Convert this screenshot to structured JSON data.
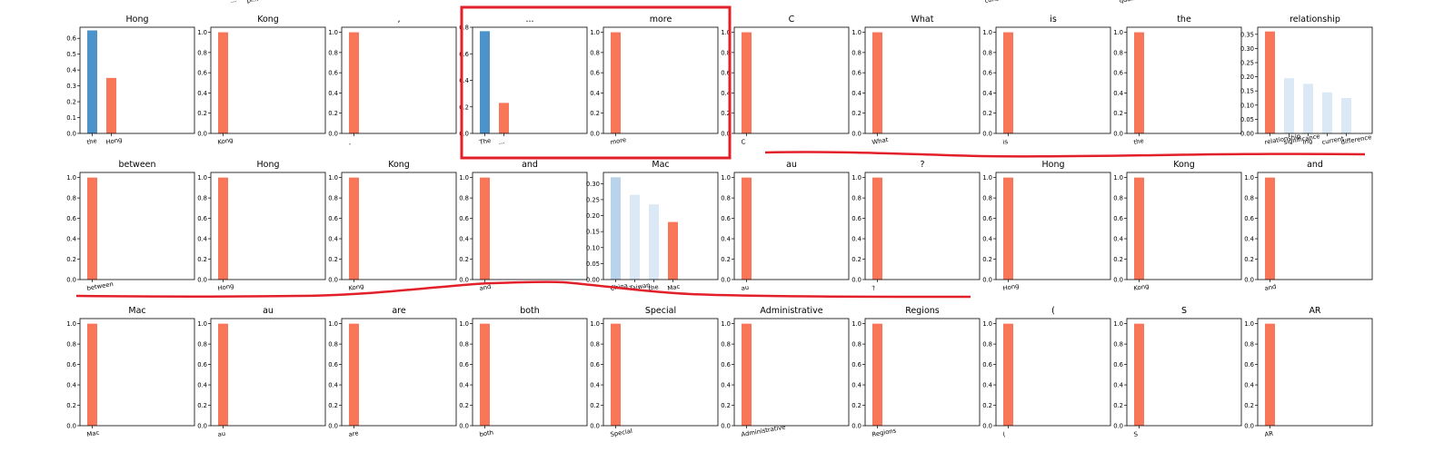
{
  "figure": {
    "colors": {
      "orange": "#fa7658",
      "blue_strong": "#4b93c9",
      "blue_mid": "#b9d3ea",
      "blue_light": "#dbe8f5",
      "annotation_red": "#e3202a"
    },
    "top_strip_texts": [
      "...",
      "pi...",
      "consid...",
      "qua..."
    ]
  },
  "chart_data": [
    {
      "type": "bar",
      "title": "Hong",
      "categories": [
        "the",
        "Hong"
      ],
      "values": [
        0.65,
        0.35
      ],
      "yticks": [
        "0.0",
        "0.1",
        "0.2",
        "0.3",
        "0.4",
        "0.5",
        "0.6"
      ],
      "ylim": [
        0,
        0.67
      ],
      "colors": [
        "blue_strong",
        "orange"
      ]
    },
    {
      "type": "bar",
      "title": "Kong",
      "categories": [
        "Kong"
      ],
      "values": [
        1.0
      ],
      "yticks": [
        "0.0",
        "0.2",
        "0.4",
        "0.6",
        "0.8",
        "1.0"
      ],
      "ylim": [
        0,
        1.05
      ],
      "colors": [
        "orange"
      ]
    },
    {
      "type": "bar",
      "title": ",",
      "categories": [
        ","
      ],
      "values": [
        1.0
      ],
      "yticks": [
        "0.0",
        "0.2",
        "0.4",
        "0.6",
        "0.8",
        "1.0"
      ],
      "ylim": [
        0,
        1.05
      ],
      "colors": [
        "orange"
      ]
    },
    {
      "type": "bar",
      "title": "...",
      "categories": [
        "The",
        "..."
      ],
      "values": [
        0.77,
        0.23
      ],
      "yticks": [
        "0.0",
        "0.2",
        "0.4",
        "0.6",
        "0.8"
      ],
      "ylim": [
        0,
        0.8
      ],
      "colors": [
        "blue_strong",
        "orange"
      ]
    },
    {
      "type": "bar",
      "title": "more",
      "categories": [
        "more"
      ],
      "values": [
        1.0
      ],
      "yticks": [
        "0.0",
        "0.2",
        "0.4",
        "0.6",
        "0.8",
        "1.0"
      ],
      "ylim": [
        0,
        1.05
      ],
      "colors": [
        "orange"
      ]
    },
    {
      "type": "bar",
      "title": "C",
      "categories": [
        "C"
      ],
      "values": [
        1.0
      ],
      "yticks": [
        "0.0",
        "0.2",
        "0.4",
        "0.6",
        "0.8",
        "1.0"
      ],
      "ylim": [
        0,
        1.05
      ],
      "colors": [
        "orange"
      ]
    },
    {
      "type": "bar",
      "title": "What",
      "categories": [
        "What"
      ],
      "values": [
        1.0
      ],
      "yticks": [
        "0.0",
        "0.2",
        "0.4",
        "0.6",
        "0.8",
        "1.0"
      ],
      "ylim": [
        0,
        1.05
      ],
      "colors": [
        "orange"
      ]
    },
    {
      "type": "bar",
      "title": "is",
      "categories": [
        "is"
      ],
      "values": [
        1.0
      ],
      "yticks": [
        "0.0",
        "0.2",
        "0.4",
        "0.6",
        "0.8",
        "1.0"
      ],
      "ylim": [
        0,
        1.05
      ],
      "colors": [
        "orange"
      ]
    },
    {
      "type": "bar",
      "title": "the",
      "categories": [
        "the"
      ],
      "values": [
        1.0
      ],
      "yticks": [
        "0.0",
        "0.2",
        "0.4",
        "0.6",
        "0.8",
        "1.0"
      ],
      "ylim": [
        0,
        1.05
      ],
      "colors": [
        "orange"
      ]
    },
    {
      "type": "bar",
      "title": "relationship",
      "categories": [
        "relationship",
        "significance",
        "ing",
        "current",
        "difference"
      ],
      "values": [
        0.36,
        0.195,
        0.175,
        0.145,
        0.125
      ],
      "yticks": [
        "0.00",
        "0.05",
        "0.10",
        "0.15",
        "0.20",
        "0.25",
        "0.30",
        "0.35"
      ],
      "ylim": [
        0,
        0.375
      ],
      "colors": [
        "orange",
        "blue_light",
        "blue_light",
        "blue_light",
        "blue_light"
      ]
    },
    {
      "type": "bar",
      "title": "between",
      "categories": [
        "between"
      ],
      "values": [
        1.0
      ],
      "yticks": [
        "0.0",
        "0.2",
        "0.4",
        "0.6",
        "0.8",
        "1.0"
      ],
      "ylim": [
        0,
        1.05
      ],
      "colors": [
        "orange"
      ]
    },
    {
      "type": "bar",
      "title": "Hong",
      "categories": [
        "Hong"
      ],
      "values": [
        1.0
      ],
      "yticks": [
        "0.0",
        "0.2",
        "0.4",
        "0.6",
        "0.8",
        "1.0"
      ],
      "ylim": [
        0,
        1.05
      ],
      "colors": [
        "orange"
      ]
    },
    {
      "type": "bar",
      "title": "Kong",
      "categories": [
        "Kong"
      ],
      "values": [
        1.0
      ],
      "yticks": [
        "0.0",
        "0.2",
        "0.4",
        "0.6",
        "0.8",
        "1.0"
      ],
      "ylim": [
        0,
        1.05
      ],
      "colors": [
        "orange"
      ]
    },
    {
      "type": "bar",
      "title": "and",
      "categories": [
        "and"
      ],
      "values": [
        1.0
      ],
      "yticks": [
        "0.0",
        "0.2",
        "0.4",
        "0.6",
        "0.8",
        "1.0"
      ],
      "ylim": [
        0,
        1.05
      ],
      "colors": [
        "orange"
      ]
    },
    {
      "type": "bar",
      "title": "Mac",
      "categories": [
        "China",
        "Taiwan",
        "the",
        "Mac"
      ],
      "values": [
        0.32,
        0.265,
        0.235,
        0.18
      ],
      "yticks": [
        "0.00",
        "0.05",
        "0.10",
        "0.15",
        "0.20",
        "0.25",
        "0.30"
      ],
      "ylim": [
        0,
        0.335
      ],
      "colors": [
        "blue_mid",
        "blue_light",
        "blue_light",
        "orange"
      ]
    },
    {
      "type": "bar",
      "title": "au",
      "categories": [
        "au"
      ],
      "values": [
        1.0
      ],
      "yticks": [
        "0.0",
        "0.2",
        "0.4",
        "0.6",
        "0.8",
        "1.0"
      ],
      "ylim": [
        0,
        1.05
      ],
      "colors": [
        "orange"
      ]
    },
    {
      "type": "bar",
      "title": "?",
      "categories": [
        "?"
      ],
      "values": [
        1.0
      ],
      "yticks": [
        "0.0",
        "0.2",
        "0.4",
        "0.6",
        "0.8",
        "1.0"
      ],
      "ylim": [
        0,
        1.05
      ],
      "colors": [
        "orange"
      ]
    },
    {
      "type": "bar",
      "title": "Hong",
      "categories": [
        "Hong"
      ],
      "values": [
        1.0
      ],
      "yticks": [
        "0.0",
        "0.2",
        "0.4",
        "0.6",
        "0.8",
        "1.0"
      ],
      "ylim": [
        0,
        1.05
      ],
      "colors": [
        "orange"
      ]
    },
    {
      "type": "bar",
      "title": "Kong",
      "categories": [
        "Kong"
      ],
      "values": [
        1.0
      ],
      "yticks": [
        "0.0",
        "0.2",
        "0.4",
        "0.6",
        "0.8",
        "1.0"
      ],
      "ylim": [
        0,
        1.05
      ],
      "colors": [
        "orange"
      ]
    },
    {
      "type": "bar",
      "title": "and",
      "categories": [
        "and"
      ],
      "values": [
        1.0
      ],
      "yticks": [
        "0.0",
        "0.2",
        "0.4",
        "0.6",
        "0.8",
        "1.0"
      ],
      "ylim": [
        0,
        1.05
      ],
      "colors": [
        "orange"
      ]
    },
    {
      "type": "bar",
      "title": "Mac",
      "categories": [
        "Mac"
      ],
      "values": [
        1.0
      ],
      "yticks": [
        "0.0",
        "0.2",
        "0.4",
        "0.6",
        "0.8",
        "1.0"
      ],
      "ylim": [
        0,
        1.05
      ],
      "colors": [
        "orange"
      ]
    },
    {
      "type": "bar",
      "title": "au",
      "categories": [
        "au"
      ],
      "values": [
        1.0
      ],
      "yticks": [
        "0.0",
        "0.2",
        "0.4",
        "0.6",
        "0.8",
        "1.0"
      ],
      "ylim": [
        0,
        1.05
      ],
      "colors": [
        "orange"
      ]
    },
    {
      "type": "bar",
      "title": "are",
      "categories": [
        "are"
      ],
      "values": [
        1.0
      ],
      "yticks": [
        "0.0",
        "0.2",
        "0.4",
        "0.6",
        "0.8",
        "1.0"
      ],
      "ylim": [
        0,
        1.05
      ],
      "colors": [
        "orange"
      ]
    },
    {
      "type": "bar",
      "title": "both",
      "categories": [
        "both"
      ],
      "values": [
        1.0
      ],
      "yticks": [
        "0.0",
        "0.2",
        "0.4",
        "0.6",
        "0.8",
        "1.0"
      ],
      "ylim": [
        0,
        1.05
      ],
      "colors": [
        "orange"
      ]
    },
    {
      "type": "bar",
      "title": "Special",
      "categories": [
        "Special"
      ],
      "values": [
        1.0
      ],
      "yticks": [
        "0.0",
        "0.2",
        "0.4",
        "0.6",
        "0.8",
        "1.0"
      ],
      "ylim": [
        0,
        1.05
      ],
      "colors": [
        "orange"
      ]
    },
    {
      "type": "bar",
      "title": "Administrative",
      "categories": [
        "Administrative"
      ],
      "values": [
        1.0
      ],
      "yticks": [
        "0.0",
        "0.2",
        "0.4",
        "0.6",
        "0.8",
        "1.0"
      ],
      "ylim": [
        0,
        1.05
      ],
      "colors": [
        "orange"
      ]
    },
    {
      "type": "bar",
      "title": "Regions",
      "categories": [
        "Regions"
      ],
      "values": [
        1.0
      ],
      "yticks": [
        "0.0",
        "0.2",
        "0.4",
        "0.6",
        "0.8",
        "1.0"
      ],
      "ylim": [
        0,
        1.05
      ],
      "colors": [
        "orange"
      ]
    },
    {
      "type": "bar",
      "title": "(",
      "categories": [
        "("
      ],
      "values": [
        1.0
      ],
      "yticks": [
        "0.0",
        "0.2",
        "0.4",
        "0.6",
        "0.8",
        "1.0"
      ],
      "ylim": [
        0,
        1.05
      ],
      "colors": [
        "orange"
      ]
    },
    {
      "type": "bar",
      "title": "S",
      "categories": [
        "S"
      ],
      "values": [
        1.0
      ],
      "yticks": [
        "0.0",
        "0.2",
        "0.4",
        "0.6",
        "0.8",
        "1.0"
      ],
      "ylim": [
        0,
        1.05
      ],
      "colors": [
        "orange"
      ]
    },
    {
      "type": "bar",
      "title": "AR",
      "categories": [
        "AR"
      ],
      "values": [
        1.0
      ],
      "yticks": [
        "0.0",
        "0.2",
        "0.4",
        "0.6",
        "0.8",
        "1.0"
      ],
      "ylim": [
        0,
        1.05
      ],
      "colors": [
        "orange"
      ]
    }
  ]
}
